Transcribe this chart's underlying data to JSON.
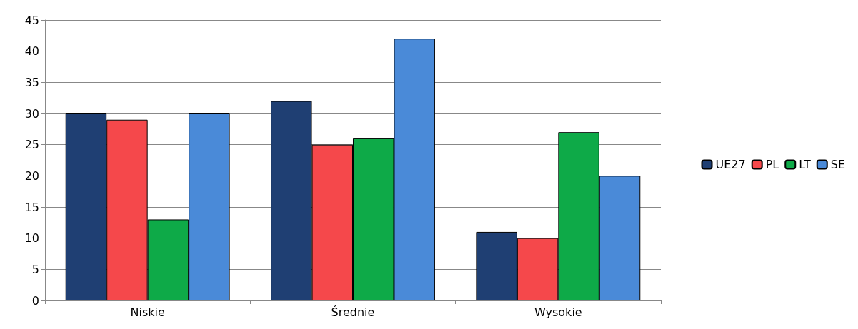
{
  "chart_data": {
    "type": "bar",
    "categories": [
      "Niskie",
      "Średnie",
      "Wysokie"
    ],
    "series": [
      {
        "name": "UE27",
        "color": "#1f3f73",
        "values": [
          30,
          32,
          11
        ]
      },
      {
        "name": "PL",
        "color": "#f5484b",
        "values": [
          29,
          25,
          10
        ]
      },
      {
        "name": "LT",
        "color": "#0eaa48",
        "values": [
          13,
          26,
          27
        ]
      },
      {
        "name": "SE",
        "color": "#4a8ad8",
        "values": [
          30,
          42,
          20
        ]
      }
    ],
    "ylim": [
      0,
      45
    ],
    "yticks": [
      0,
      5,
      10,
      15,
      20,
      25,
      30,
      35,
      40,
      45
    ],
    "grid": "y",
    "legend": "right"
  }
}
